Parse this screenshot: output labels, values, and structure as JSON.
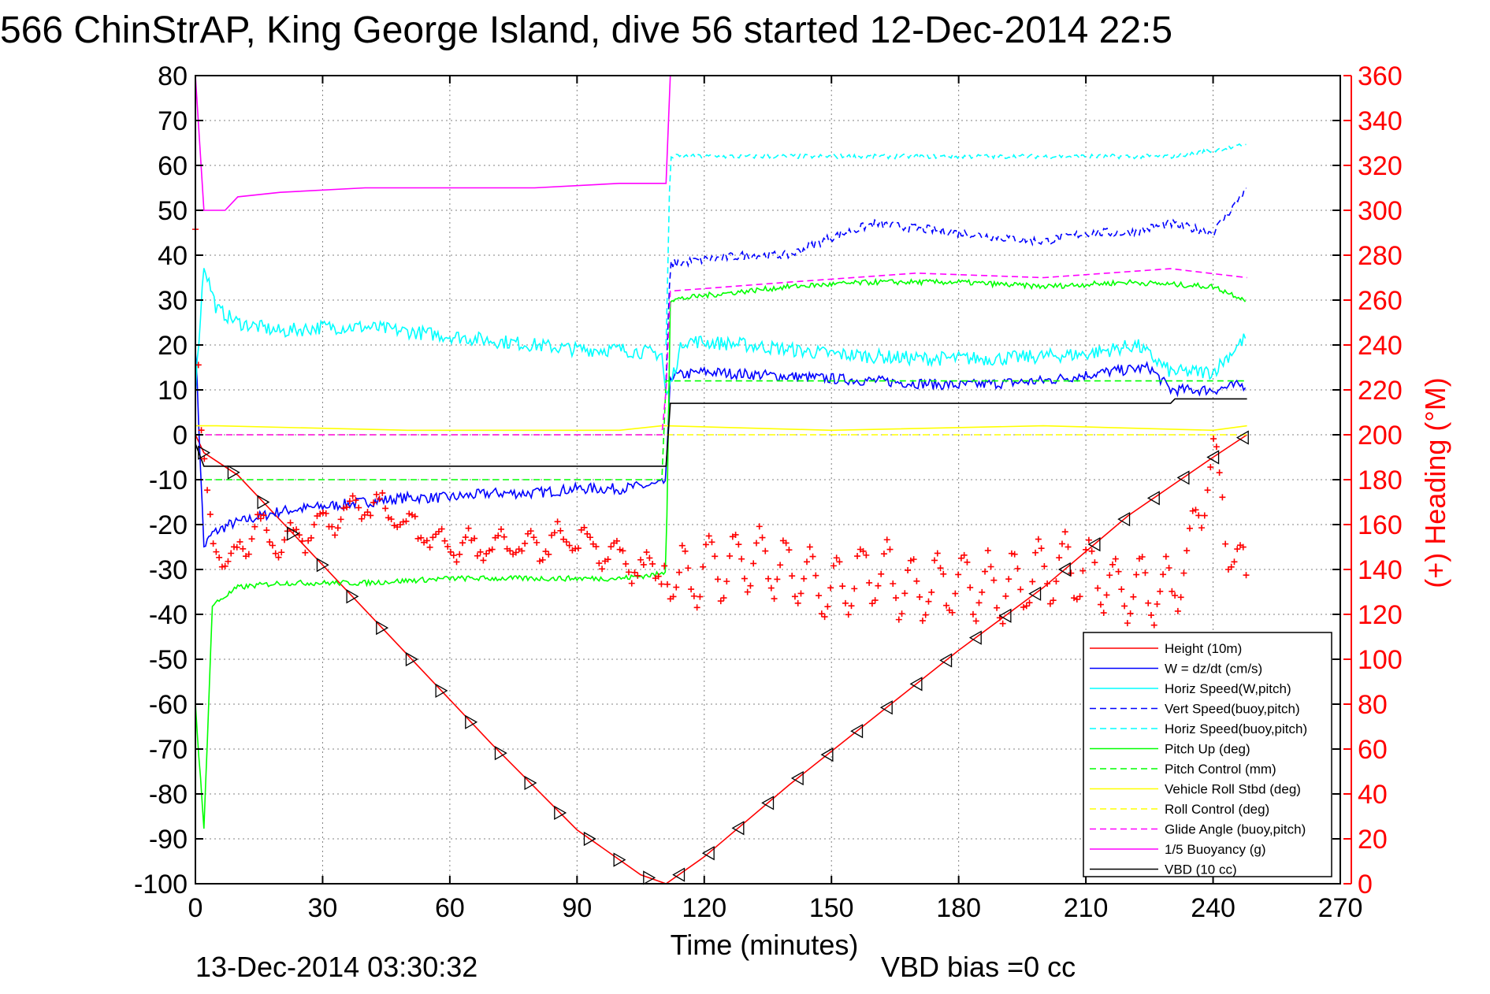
{
  "chart_data": {
    "type": "line",
    "title": "566 ChinStrAP, King George Island, dive 56 started 12-Dec-2014 22:5",
    "xlabel": "Time (minutes)",
    "ylabel_right": "(+) Heading (°M)",
    "footer_left": "13-Dec-2014 03:30:32",
    "footer_right": "VBD bias =0 cc",
    "xlim": [
      0,
      270
    ],
    "ylim": [
      -100,
      80
    ],
    "y2lim": [
      0,
      360
    ],
    "grid": true,
    "legend_position": "lower-right",
    "x_ticks": [
      "0",
      "30",
      "60",
      "90",
      "120",
      "150",
      "180",
      "210",
      "240",
      "270"
    ],
    "y_ticks": [
      "80",
      "70",
      "60",
      "50",
      "40",
      "30",
      "20",
      "10",
      "0",
      "-10",
      "-20",
      "-30",
      "-40",
      "-50",
      "-60",
      "-70",
      "-80",
      "-90",
      "-100"
    ],
    "y2_ticks": [
      "360",
      "340",
      "320",
      "300",
      "280",
      "260",
      "240",
      "220",
      "200",
      "180",
      "160",
      "140",
      "120",
      "100",
      "80",
      "60",
      "40",
      "20",
      "0"
    ],
    "legend": [
      {
        "label": "Height (10m)",
        "color": "#ff0000",
        "dash": "solid"
      },
      {
        "label": "W = dz/dt (cm/s)",
        "color": "#0000ff",
        "dash": "solid"
      },
      {
        "label": "Horiz Speed(W,pitch)",
        "color": "#00ffff",
        "dash": "solid"
      },
      {
        "label": "Vert Speed(buoy,pitch)",
        "color": "#0000ff",
        "dash": "dashed"
      },
      {
        "label": "Horiz Speed(buoy,pitch)",
        "color": "#00ffff",
        "dash": "dashed"
      },
      {
        "label": "Pitch Up (deg)",
        "color": "#00ff00",
        "dash": "solid"
      },
      {
        "label": "Pitch Control (mm)",
        "color": "#00ff00",
        "dash": "dashed"
      },
      {
        "label": "Vehicle Roll Stbd (deg)",
        "color": "#ffff00",
        "dash": "solid"
      },
      {
        "label": "Roll Control (deg)",
        "color": "#ffff00",
        "dash": "dashed"
      },
      {
        "label": "Glide Angle (buoy,pitch)",
        "color": "#ff00ff",
        "dash": "dashed"
      },
      {
        "label": "1/5 Buoyancy (g)",
        "color": "#ff00ff",
        "dash": "solid"
      },
      {
        "label": "VBD (10 cc)",
        "color": "#000000",
        "dash": "solid"
      }
    ],
    "series": [
      {
        "name": "Height (10m)",
        "x": [
          0,
          2,
          10,
          30,
          50,
          70,
          90,
          105,
          111,
          120,
          140,
          160,
          180,
          200,
          220,
          240,
          248
        ],
        "y": [
          0,
          -4,
          -9,
          -29,
          -49,
          -69,
          -88,
          -98,
          -100,
          -94,
          -78,
          -63,
          -48,
          -34,
          -18,
          -5,
          0
        ]
      },
      {
        "name": "W = dz/dt (cm/s)",
        "x": [
          0,
          2,
          4,
          8,
          20,
          30,
          40,
          50,
          60,
          70,
          80,
          90,
          100,
          110,
          111,
          112,
          120,
          140,
          160,
          180,
          200,
          215,
          225,
          230,
          240,
          246,
          248
        ],
        "y": [
          20,
          -25,
          -22,
          -20,
          -17,
          -16,
          -15,
          -14,
          -14,
          -13,
          -13,
          -12,
          -12,
          -11,
          -10,
          13,
          14,
          13,
          12,
          11,
          12,
          14,
          15,
          10,
          10,
          11,
          11
        ]
      },
      {
        "name": "Horiz Speed(W,pitch)",
        "x": [
          0,
          2,
          5,
          10,
          20,
          30,
          40,
          50,
          60,
          70,
          80,
          90,
          100,
          110,
          111,
          115,
          130,
          150,
          170,
          190,
          210,
          222,
          230,
          240,
          248
        ],
        "y": [
          10,
          38,
          28,
          25,
          23,
          24,
          24,
          23,
          22,
          21,
          20,
          19,
          19,
          18,
          8,
          21,
          20,
          18,
          17,
          17,
          18,
          20,
          14,
          14,
          22
        ]
      },
      {
        "name": "Vert Speed(buoy,pitch)",
        "x": [
          111,
          112,
          120,
          130,
          140,
          150,
          160,
          170,
          180,
          190,
          200,
          210,
          220,
          230,
          240,
          248
        ],
        "y": [
          12,
          38,
          39,
          40,
          40,
          44,
          47,
          46,
          45,
          44,
          43,
          45,
          45,
          47,
          45,
          55
        ]
      },
      {
        "name": "Horiz Speed(buoy,pitch)",
        "x": [
          111,
          112,
          130,
          150,
          170,
          190,
          210,
          230,
          245,
          248
        ],
        "y": [
          20,
          62,
          62,
          62,
          62,
          62,
          62,
          62,
          64,
          65
        ]
      },
      {
        "name": "Pitch Up (deg)",
        "x": [
          0,
          2,
          4,
          10,
          20,
          40,
          60,
          80,
          100,
          110,
          111,
          112,
          120,
          140,
          160,
          180,
          200,
          220,
          240,
          248
        ],
        "y": [
          -60,
          -88,
          -38,
          -34,
          -33,
          -33,
          -32,
          -32,
          -32,
          -31,
          -30,
          30,
          31,
          33,
          34,
          34,
          33,
          34,
          33,
          30
        ]
      },
      {
        "name": "Pitch Control (mm)",
        "x": [
          0,
          5,
          110,
          111,
          112,
          248
        ],
        "y": [
          -10,
          -10,
          -10,
          12,
          12,
          12
        ]
      },
      {
        "name": "Vehicle Roll Stbd (deg)",
        "x": [
          0,
          5,
          50,
          100,
          110,
          111,
          150,
          200,
          240,
          248
        ],
        "y": [
          2,
          2,
          1,
          1,
          2,
          2,
          1,
          2,
          1,
          2
        ]
      },
      {
        "name": "Roll Control (deg)",
        "x": [
          0,
          248
        ],
        "y": [
          0,
          0
        ]
      },
      {
        "name": "Glide Angle (buoy,pitch)",
        "x": [
          0,
          110,
          111,
          112,
          140,
          170,
          200,
          230,
          248
        ],
        "y": [
          0,
          0,
          10,
          32,
          34,
          36,
          35,
          37,
          35
        ]
      },
      {
        "name": "1/5 Buoyancy (g)",
        "x": [
          0,
          2,
          7,
          10,
          20,
          40,
          60,
          80,
          100,
          110,
          111,
          112
        ],
        "y": [
          80,
          50,
          50,
          53,
          54,
          55,
          55,
          55,
          56,
          56,
          56,
          80
        ]
      },
      {
        "name": "VBD (10 cc)",
        "x": [
          0,
          2,
          110,
          111,
          112,
          130,
          230,
          231,
          248
        ],
        "y": [
          -2,
          -7,
          -7,
          -7,
          7,
          7,
          7,
          8,
          8
        ]
      },
      {
        "name": "Heading",
        "axis": "right",
        "x": [
          0,
          1,
          3,
          5,
          8,
          10,
          15,
          20,
          30,
          40,
          50,
          60,
          70,
          80,
          90,
          100,
          105,
          110,
          115,
          120,
          130,
          140,
          150,
          160,
          170,
          180,
          190,
          200,
          210,
          220,
          230,
          235,
          238,
          240,
          243,
          246,
          248
        ],
        "y": [
          290,
          200,
          170,
          150,
          140,
          150,
          160,
          150,
          160,
          170,
          160,
          150,
          150,
          150,
          155,
          145,
          140,
          140,
          135,
          140,
          145,
          140,
          130,
          140,
          130,
          135,
          130,
          140,
          140,
          130,
          130,
          150,
          180,
          190,
          160,
          140,
          130
        ]
      }
    ]
  }
}
